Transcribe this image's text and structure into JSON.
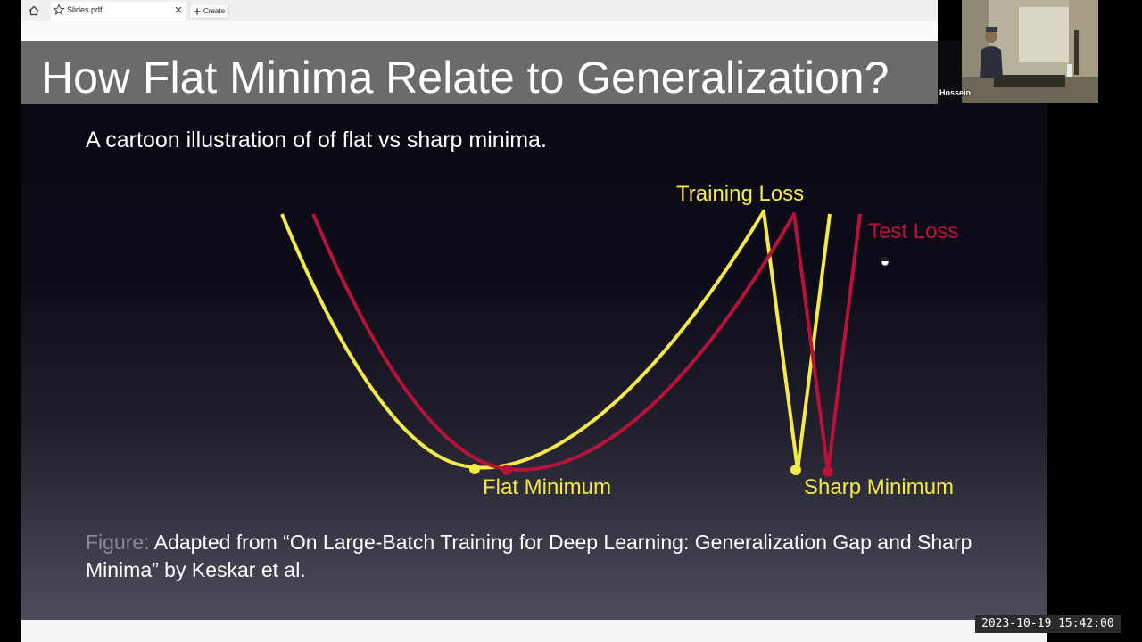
{
  "browser": {
    "tab_title": "Slides.pdf",
    "create_label": "Create"
  },
  "slide": {
    "title": "How Flat Minima Relate to Generalization?",
    "subtitle": "A cartoon illustration of of flat vs sharp minima.",
    "caption_prefix": "Figure:",
    "caption_text": " Adapted from “On Large-Batch Training for Deep Learning: Generalization Gap and Sharp Minima” by Keskar et al."
  },
  "figure": {
    "labels": {
      "training_loss": "Training Loss",
      "test_loss": "Test Loss",
      "flat_minimum": "Flat Minimum",
      "sharp_minimum": "Sharp Minimum"
    },
    "colors": {
      "training": "#f5e94a",
      "test": "#b8123a"
    }
  },
  "webcam": {
    "name": "Hossein"
  },
  "timestamp": "2023-10-19 15:42:00"
}
